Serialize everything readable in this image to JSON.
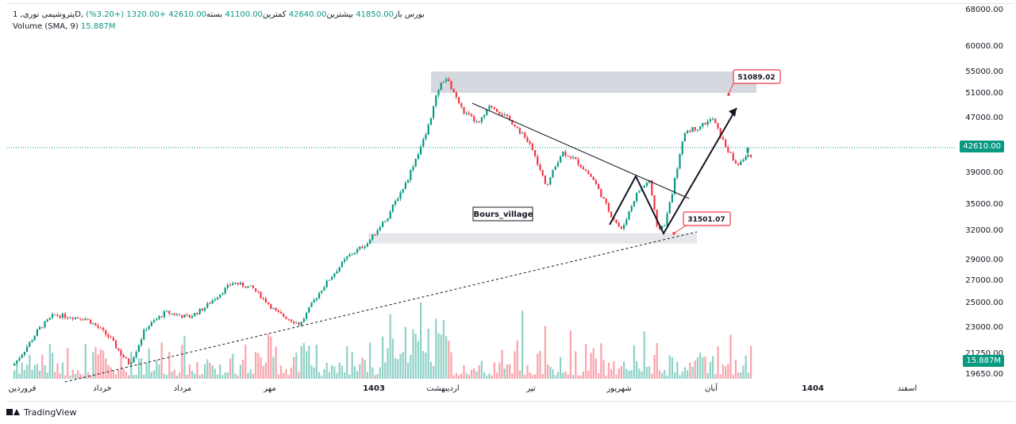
{
  "legend": {
    "symbol": "پتروشیمی نوری, 1D, بورس",
    "open_label": "باز",
    "open_value": "41850.00",
    "high_label": "بیشترین",
    "high_value": "42640.00",
    "low_label": "کمترین",
    "low_value": "41100.00",
    "close_label": "بسته",
    "close_value": "42610.00",
    "change": "+1320.00 (+3.20%)",
    "volume_label": "Volume",
    "volume_params": "(SMA, 9)",
    "volume_value": "15.887M"
  },
  "price_axis": {
    "ticks": [
      "68000.00",
      "60000.00",
      "55000.00",
      "51000.00",
      "47000.00",
      "39000.00",
      "35000.00",
      "32000.00",
      "29000.00",
      "27000.00",
      "25000.00",
      "23000.00",
      "21250.00",
      "19650.00"
    ],
    "last_price": "42610.00",
    "last_volume": "15.887M"
  },
  "time_axis": {
    "labels": [
      "فروردین",
      "خرداد",
      "مرداد",
      "مهر",
      "1403",
      "اردیبهشت",
      "تیر",
      "شهریور",
      "آبان",
      "1404",
      "اسفند"
    ]
  },
  "annotations": {
    "watermark_text": "Bours_village",
    "target_label": "51089.02",
    "support_label": "31501.07"
  },
  "colors": {
    "up": "#089981",
    "down": "#f23645",
    "zone": "#d1d4dc",
    "last_price_line": "#089981",
    "callout_border": "#f23645"
  },
  "footer": {
    "brand": "TradingView",
    "logo_icon": "tradingview-logo-icon"
  },
  "chart_data": {
    "type": "candlestick",
    "title": "",
    "series": [
      {
        "name": "Volume",
        "note_sma_period": 9
      }
    ],
    "last": {
      "open": 41850,
      "high": 42640,
      "low": 41100,
      "close": 42610,
      "volume": "15.887M"
    },
    "ylim": [
      19650,
      68000
    ],
    "y_ticks": [
      68000,
      60000,
      55000,
      51000,
      47000,
      39000,
      35000,
      32000,
      29000,
      27000,
      25000,
      23000,
      21250,
      19650
    ],
    "horizontal_zones": [
      {
        "low": 51000,
        "high": 55000
      },
      {
        "low": 30800,
        "high": 31700
      }
    ],
    "labels": [
      51089.02,
      31501.07
    ]
  }
}
